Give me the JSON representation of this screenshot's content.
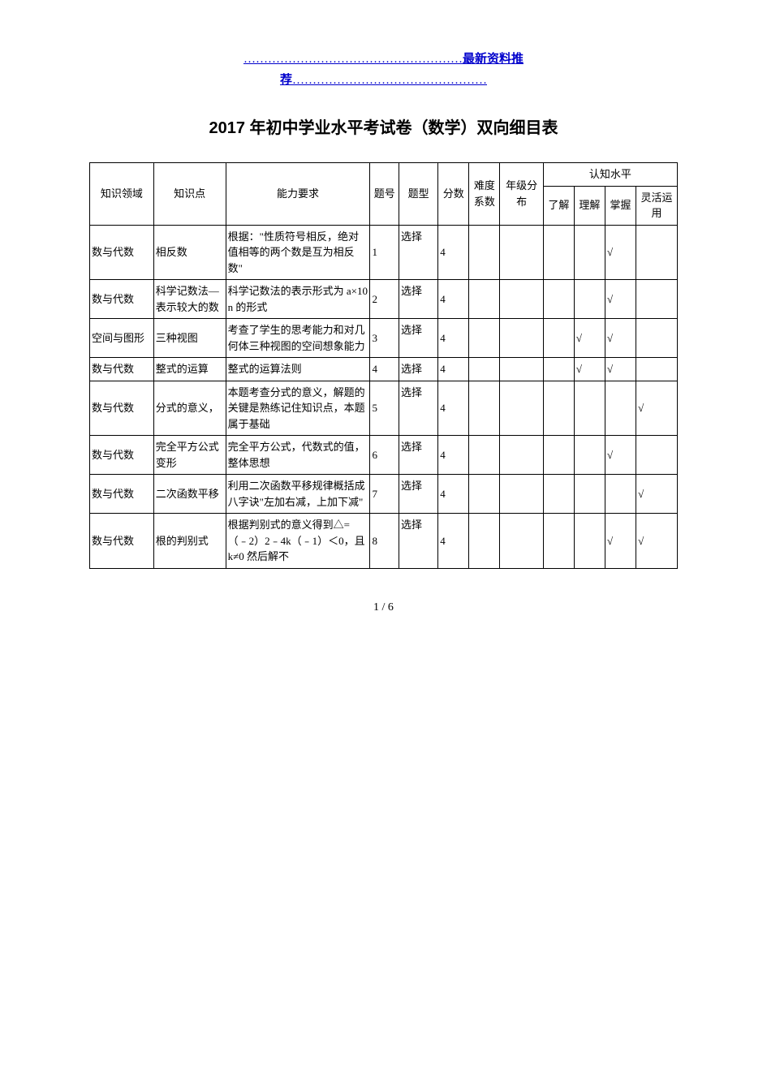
{
  "banner": {
    "dots_left": "………………………………………………",
    "text1": "最新资料推",
    "text2": "荐",
    "dots_right": "…………………………………………"
  },
  "title": "2017 年初中学业水平考试卷（数学）双向细目表",
  "headers": {
    "domain": "知识领域",
    "point": "知识点",
    "req": "能力要求",
    "num": "题号",
    "type": "题型",
    "score": "分数",
    "difficulty": "难度系数",
    "grade": "年级分布",
    "cognition_group": "认知水平",
    "cog_understand_know": "了解",
    "cog_comprehend": "理解",
    "cog_master": "掌握",
    "cog_flexible": "灵活运用"
  },
  "check_mark": "√",
  "rows": [
    {
      "domain": "数与代数",
      "point": "相反数",
      "req": "根据：\"性质符号相反，绝对值相等的两个数是互为相反数\"",
      "num": "1",
      "type": "选择",
      "score": "4",
      "cog": {
        "know": "",
        "comp": "",
        "master": "√",
        "flex": ""
      }
    },
    {
      "domain": "数与代数",
      "point": "科学记数法—表示较大的数",
      "req": "科学记数法的表示形式为 a×10n 的形式",
      "num": "2",
      "type": "选择",
      "score": "4",
      "cog": {
        "know": "",
        "comp": "",
        "master": "√",
        "flex": ""
      }
    },
    {
      "domain": "空间与图形",
      "point": "三种视图",
      "req": "考查了学生的思考能力和对几何体三种视图的空间想象能力",
      "num": "3",
      "type": "选择",
      "score": "4",
      "cog": {
        "know": "",
        "comp": "√",
        "master": "√",
        "flex": ""
      }
    },
    {
      "domain": "数与代数",
      "point": "整式的运算",
      "req": "整式的运算法则",
      "num": "4",
      "type": "选择",
      "score": "4",
      "cog": {
        "know": "",
        "comp": "√",
        "master": "√",
        "flex": ""
      }
    },
    {
      "domain": "数与代数",
      "point": "分式的意义，",
      "req": "本题考查分式的意义，解题的关键是熟练记住知识点，本题属于基础",
      "num": "5",
      "type": "选择",
      "score": "4",
      "cog": {
        "know": "",
        "comp": "",
        "master": "",
        "flex": "√"
      }
    },
    {
      "domain": "数与代数",
      "point": "完全平方公式变形",
      "req": "完全平方公式，代数式的值，整体思想",
      "num": "6",
      "type": "选择",
      "score": "4",
      "cog": {
        "know": "",
        "comp": "",
        "master": "√",
        "flex": ""
      }
    },
    {
      "domain": "数与代数",
      "point": "二次函数平移",
      "req": "利用二次函数平移规律概括成八字诀\"左加右减，上加下减\"",
      "num": "7",
      "type": "选择",
      "score": "4",
      "cog": {
        "know": "",
        "comp": "",
        "master": "",
        "flex": "√"
      }
    },
    {
      "domain": "数与代数",
      "point": "根的判别式",
      "req": "根据判别式的意义得到△=（﹣2）2﹣4k（﹣1）＜0，且 k≠0 然后解不",
      "num": "8",
      "type": "选择",
      "score": "4",
      "cog": {
        "know": "",
        "comp": "",
        "master": "√",
        "flex": "√"
      }
    }
  ],
  "footer": "1 / 6"
}
